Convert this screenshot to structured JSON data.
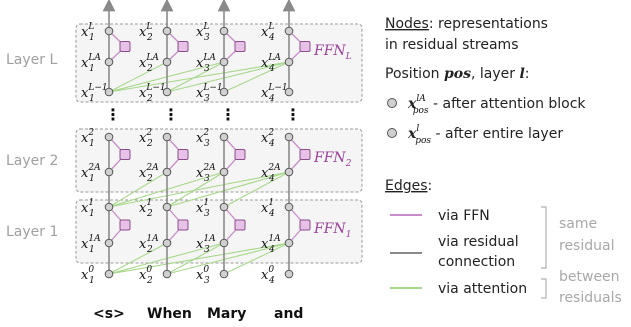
{
  "layers": [
    {
      "label": "Layer L",
      "ffn": "FFN",
      "ffn_sub": "L"
    },
    {
      "label": "Layer 2",
      "ffn": "FFN",
      "ffn_sub": "2"
    },
    {
      "label": "Layer 1",
      "ffn": "FFN",
      "ffn_sub": "1"
    }
  ],
  "node_base": "x",
  "positions": [
    "1",
    "2",
    "3",
    "4"
  ],
  "tokens": [
    "<s>",
    "When",
    "Mary",
    "and"
  ],
  "superscripts": {
    "bottom": "0",
    "l1_attn": "1A",
    "l1_out": "1",
    "l2_attn": "2A",
    "l2_out": "2",
    "lL_in": "L−1",
    "lL_attn": "LA",
    "lL_out": "L"
  },
  "ellipsis": "⋮",
  "legend": {
    "nodes_title": "Nodes",
    "nodes_desc_1": ": representations",
    "nodes_desc_2": "in residual streams",
    "position_prefix": "Position ",
    "position_var": "pos",
    "position_mid": ", layer ",
    "layer_var": "l",
    "position_suffix": ":",
    "attn_node_base": "x",
    "attn_node_sup": "lA",
    "attn_node_sub": "pos",
    "attn_node_desc": " - after attention block",
    "layer_node_base": "x",
    "layer_node_sup": "l",
    "layer_node_sub": "pos",
    "layer_node_desc": " - after entire layer",
    "edges_title": "Edges",
    "edges_colon": ":",
    "via_ffn": "via FFN",
    "via_residual_1": "via residual",
    "via_residual_2": "connection",
    "via_attention": "via attention",
    "same_1": "same",
    "same_2": "residual",
    "between_1": "between",
    "between_2": "residuals"
  },
  "colors": {
    "ffn": "#c88cc8",
    "ffn_fill": "#e7c1e7",
    "residual": "#8a8a8a",
    "attention": "#a6d889",
    "node_fill": "#d0d0d0",
    "box_fill": "#f5f5f5",
    "box_border": "#9a9a9a"
  }
}
